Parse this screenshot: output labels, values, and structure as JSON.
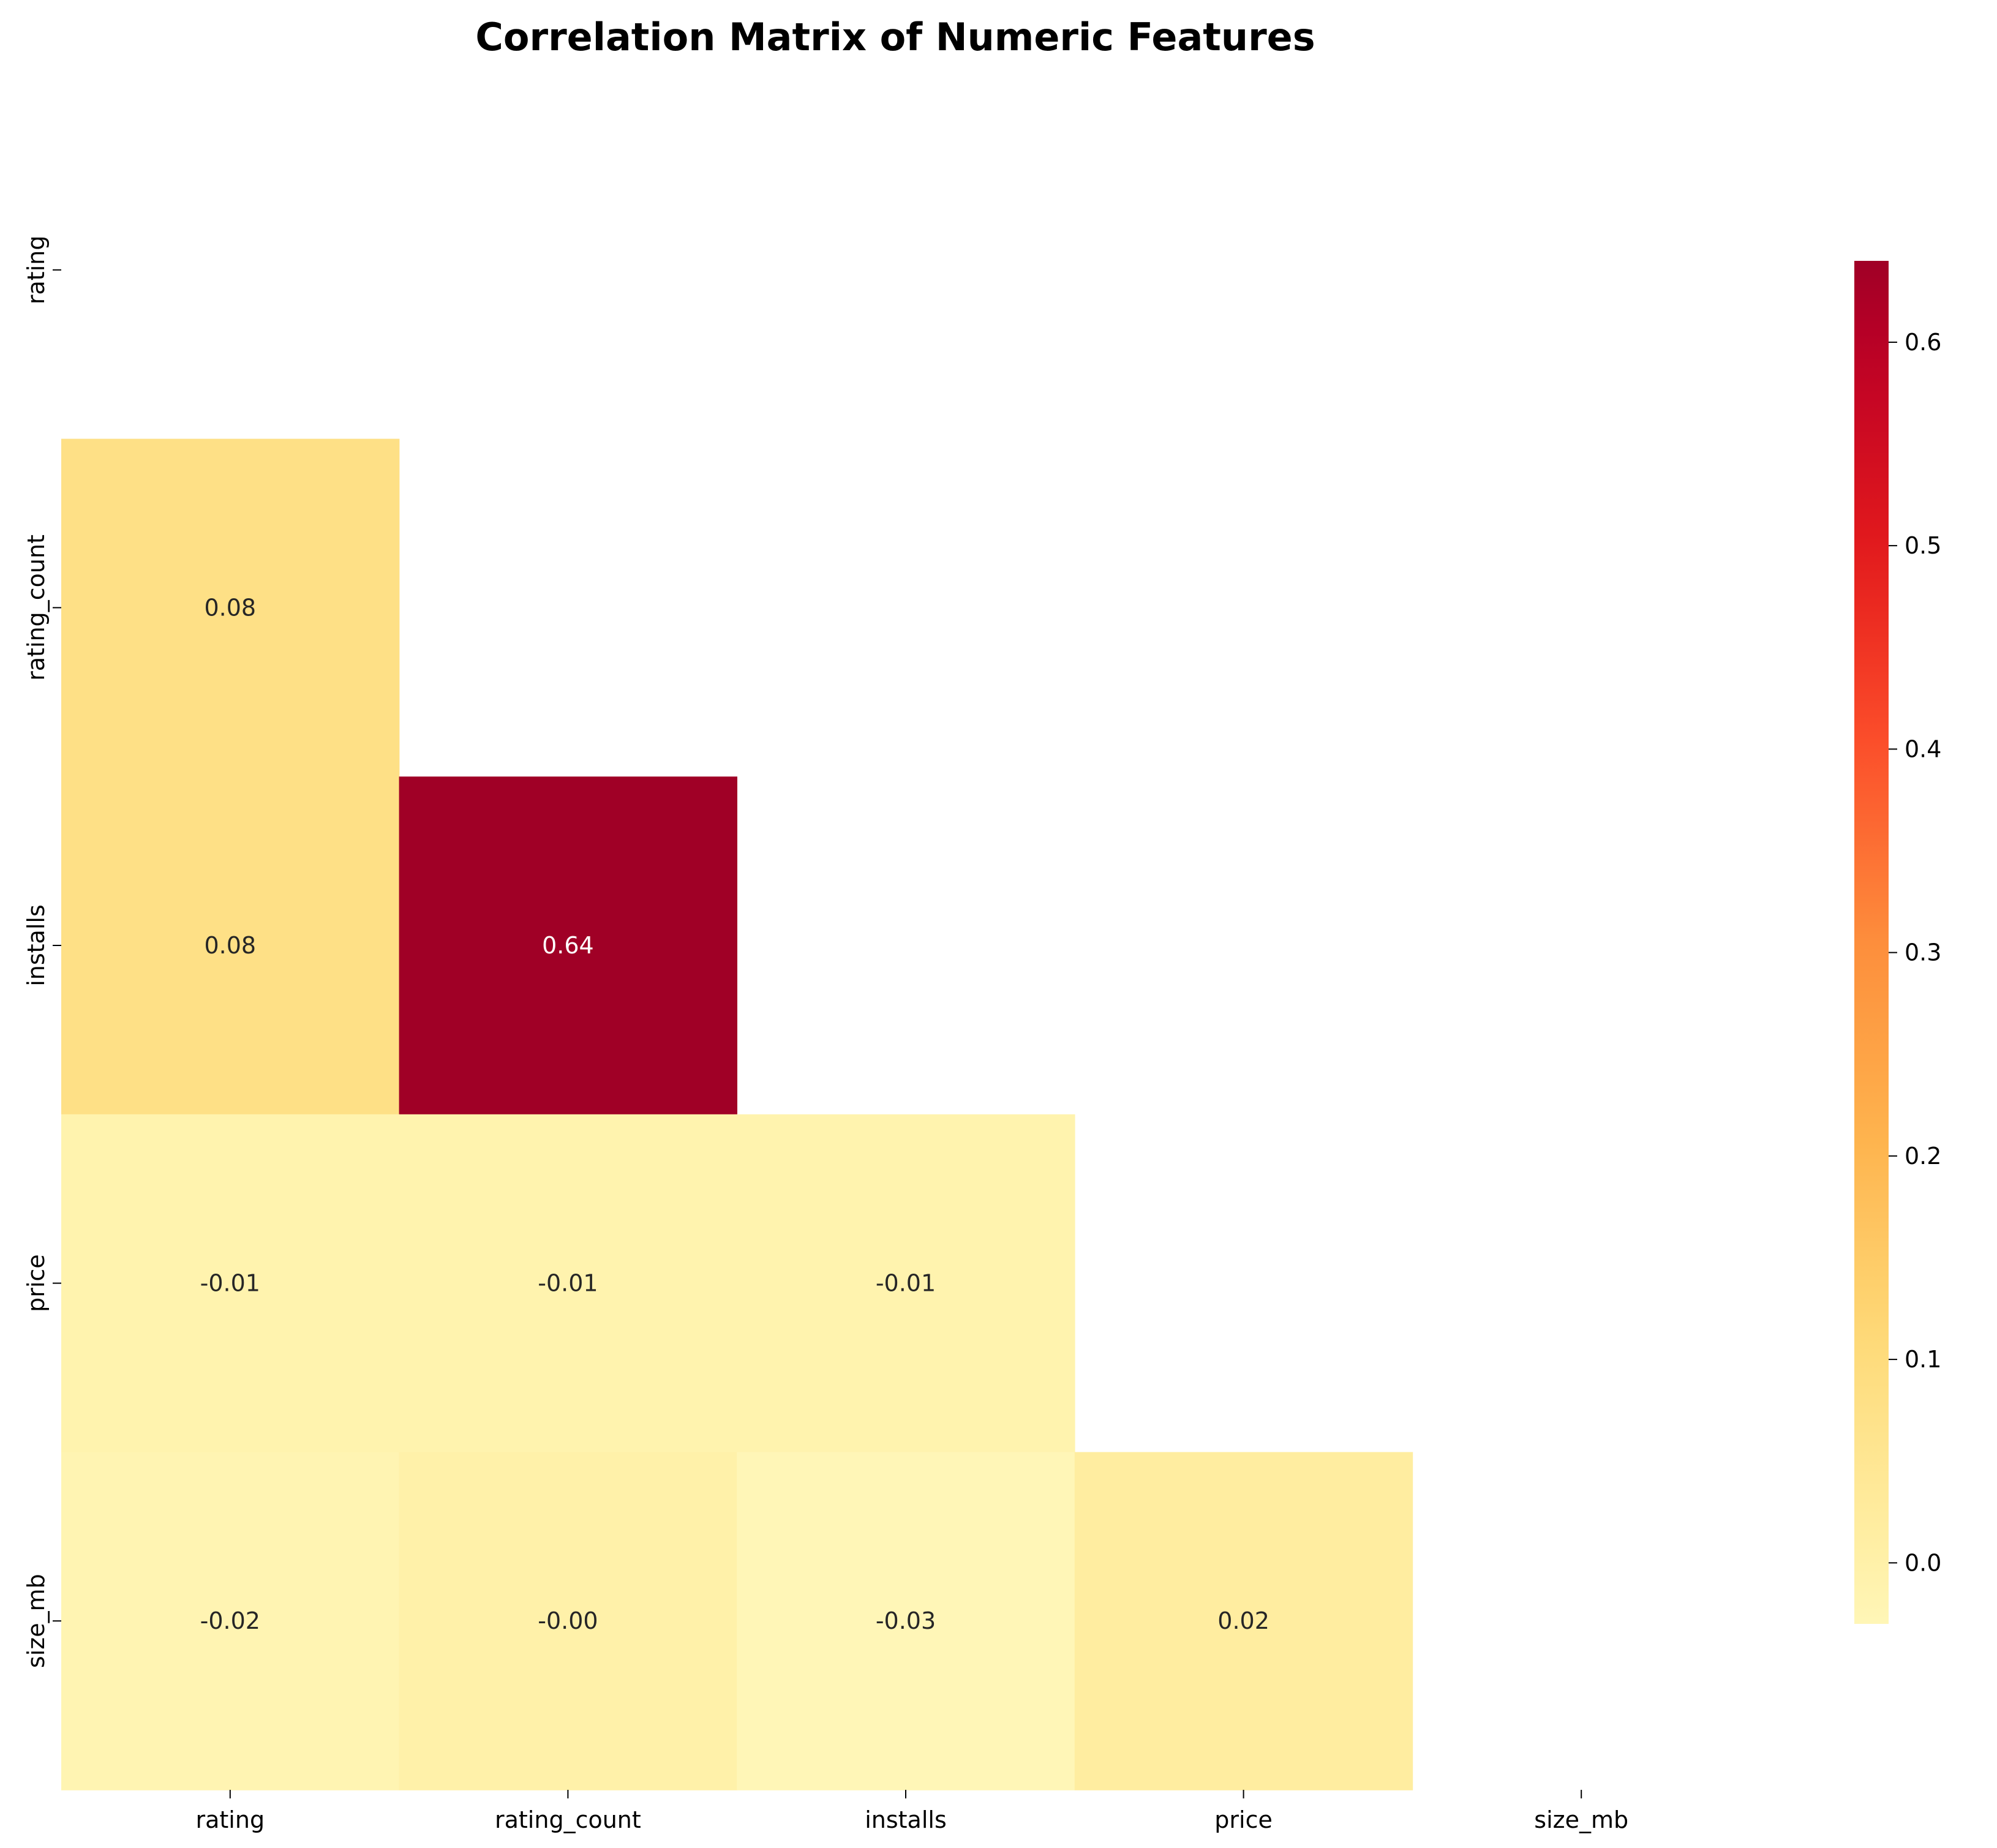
{
  "chart_data": {
    "type": "heatmap",
    "title": "Correlation Matrix of Numeric Features",
    "variables": [
      "rating",
      "rating_count",
      "installs",
      "price",
      "size_mb"
    ],
    "mask": "upper-triangle-including-diagonal",
    "cells": [
      {
        "row": "rating_count",
        "col": "rating",
        "value": 0.08,
        "label": "0.08"
      },
      {
        "row": "installs",
        "col": "rating",
        "value": 0.08,
        "label": "0.08"
      },
      {
        "row": "installs",
        "col": "rating_count",
        "value": 0.64,
        "label": "0.64"
      },
      {
        "row": "price",
        "col": "rating",
        "value": -0.01,
        "label": "-0.01"
      },
      {
        "row": "price",
        "col": "rating_count",
        "value": -0.01,
        "label": "-0.01"
      },
      {
        "row": "price",
        "col": "installs",
        "value": -0.01,
        "label": "-0.01"
      },
      {
        "row": "size_mb",
        "col": "rating",
        "value": -0.02,
        "label": "-0.02"
      },
      {
        "row": "size_mb",
        "col": "rating_count",
        "value": -0.0,
        "label": "-0.00"
      },
      {
        "row": "size_mb",
        "col": "installs",
        "value": -0.03,
        "label": "-0.03"
      },
      {
        "row": "size_mb",
        "col": "price",
        "value": 0.02,
        "label": "0.02"
      }
    ],
    "colormap": "YlOrRd",
    "colorbar": {
      "range": [
        -0.03,
        0.64
      ],
      "ticks": [
        0.0,
        0.1,
        0.2,
        0.3,
        0.4,
        0.5,
        0.6
      ],
      "tick_labels": [
        "0.0",
        "0.1",
        "0.2",
        "0.3",
        "0.4",
        "0.5",
        "0.6"
      ],
      "placement": "right"
    },
    "grid": false
  }
}
